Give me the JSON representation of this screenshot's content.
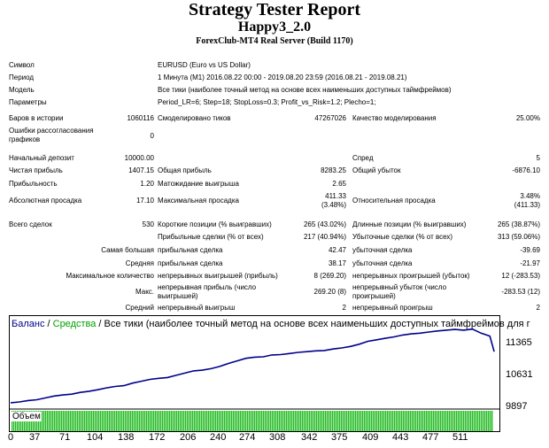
{
  "report": {
    "title": "Strategy Tester Report",
    "expert": "Happy3_2.0",
    "server": "ForexClub-MT4 Real Server (Build 1170)"
  },
  "details": {
    "symbol_label": "Символ",
    "symbol_value": "EURUSD (Euro vs US Dollar)",
    "period_label": "Период",
    "period_value": "1 Минута (M1) 2016.08.22 00:00 - 2019.08.20 23:59 (2016.08.21 - 2019.08.21)",
    "model_label": "Модель",
    "model_value": "Все тики (наиболее точный метод на основе всех наименьших доступных таймфреймов)",
    "params_label": "Параметры",
    "params_value": "Period_LR=6; Step=18; StopLoss=0.3; Profit_vs_Risk=1.2; Plecho=1;"
  },
  "stats": {
    "bars_label": "Баров в истории",
    "bars_value": "1060116",
    "ticks_label": "Смоделировано тиков",
    "ticks_value": "47267026",
    "quality_label": "Качество моделирования",
    "quality_value": "25.00%",
    "errors_label": "Ошибки рассогласования графиков",
    "errors_value": "0",
    "deposit_label": "Начальный депозит",
    "deposit_value": "10000.00",
    "spread_label": "Спред",
    "spread_value": "5",
    "net_label": "Чистая прибыль",
    "net_value": "1407.15",
    "gross_profit_label": "Общая прибыль",
    "gross_profit_value": "8283.25",
    "gross_loss_label": "Общий убыток",
    "gross_loss_value": "-6876.10",
    "pf_label": "Прибыльность",
    "pf_value": "1.20",
    "payoff_label": "Матожидание выигрыша",
    "payoff_value": "2.65",
    "abs_dd_label": "Абсолютная просадка",
    "abs_dd_value": "17.10",
    "max_dd_label": "Максимальная просадка",
    "max_dd_value1": "411.33",
    "max_dd_value2": "(3.48%)",
    "rel_dd_label": "Относительная просадка",
    "rel_dd_value1": "3.48%",
    "rel_dd_value2": "(411.33)",
    "total_label": "Всего сделок",
    "total_value": "530",
    "short_label": "Короткие позиции (% выигравших)",
    "short_value": "265 (43.02%)",
    "long_label": "Длинные позиции (% выигравших)",
    "long_value": "265 (38.87%)",
    "profit_trades_label": "Прибыльные сделки (% от всех)",
    "profit_trades_value": "217 (40.94%)",
    "loss_trades_label": "Убыточные сделки (% от всех)",
    "loss_trades_value": "313 (59.06%)",
    "largest_label": "Самая большая",
    "largest_profit_label": "прибыльная сделка",
    "largest_profit_value": "42.47",
    "largest_loss_label": "убыточная сделка",
    "largest_loss_value": "-39.69",
    "avg_label": "Средняя",
    "avg_profit_label": "прибыльная сделка",
    "avg_profit_value": "38.17",
    "avg_loss_label": "убыточная сделка",
    "avg_loss_value": "-21.97",
    "max_count_label": "Максимальное количество",
    "cons_wins_label": "непрерывных выигрышей (прибыль)",
    "cons_wins_value": "8 (269.20)",
    "cons_losses_label": "непрерывных проигрышей (убыток)",
    "cons_losses_value": "12 (-283.53)",
    "max_label": "Макс.",
    "cons_profit_label": "непрерывная прибыль (число выигрышей)",
    "cons_profit_value": "269.20 (8)",
    "cons_loss_label": "непрерывный убыток (число проигрышей)",
    "cons_loss_value": "-283.53 (12)",
    "mean_label": "Средний",
    "mean_wins_label": "непрерывный выигрыш",
    "mean_wins_value": "2",
    "mean_losses_label": "непрерывный проигрыш",
    "mean_losses_value": "2"
  },
  "chart_data": {
    "type": "line",
    "legend": {
      "balance": "Баланс",
      "sep1": " / ",
      "equity": "Средства",
      "sep2": " / ",
      "rest": "Все тики (наиболее точный метод на основе всех наименьших доступных таймфреймов для г"
    },
    "volume_label": "Объем",
    "colors": {
      "balance": "#00008b",
      "equity": "#00a000",
      "volume": "#22bb22",
      "grid": "#000000"
    },
    "ylim": [
      9897,
      12050
    ],
    "xlim": [
      0,
      560
    ],
    "yticks": [
      "11365",
      "10631",
      "9897"
    ],
    "xticks": [
      "0",
      "37",
      "71",
      "104",
      "138",
      "172",
      "206",
      "240",
      "274",
      "308",
      "342",
      "375",
      "409",
      "443",
      "477",
      "511"
    ],
    "x": [
      0,
      10,
      20,
      30,
      40,
      50,
      60,
      70,
      80,
      90,
      100,
      110,
      120,
      130,
      140,
      150,
      160,
      170,
      180,
      190,
      200,
      210,
      220,
      230,
      240,
      250,
      260,
      270,
      280,
      290,
      300,
      310,
      320,
      330,
      340,
      350,
      360,
      370,
      380,
      390,
      400,
      410,
      420,
      430,
      440,
      450,
      460,
      470,
      480,
      490,
      500,
      510,
      520,
      530,
      540,
      550,
      555
    ],
    "values": [
      10020,
      10040,
      10080,
      10100,
      10150,
      10200,
      10230,
      10250,
      10300,
      10330,
      10370,
      10420,
      10460,
      10480,
      10550,
      10600,
      10650,
      10680,
      10700,
      10760,
      10820,
      10880,
      10900,
      10940,
      11000,
      11080,
      11150,
      11220,
      11250,
      11260,
      11310,
      11320,
      11350,
      11380,
      11400,
      11420,
      11430,
      11470,
      11500,
      11540,
      11600,
      11680,
      11720,
      11760,
      11800,
      11850,
      11880,
      11900,
      11930,
      11960,
      11980,
      12000,
      11980,
      12010,
      11900,
      11820,
      11400
    ]
  }
}
